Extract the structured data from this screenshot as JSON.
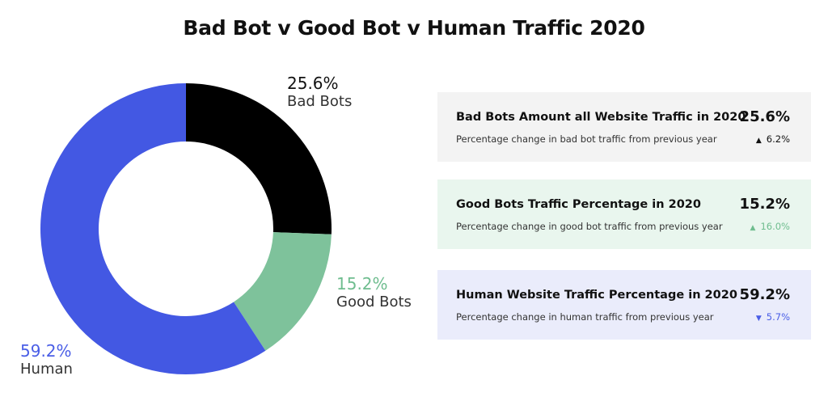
{
  "title": "Bad Bot v Good Bot v Human Traffic 2020",
  "chart_data": {
    "type": "pie",
    "title": "Bad Bot v Good Bot v Human Traffic 2020",
    "donut": true,
    "slices": [
      {
        "name": "Bad Bots",
        "label": "25.6%",
        "value": 25.6,
        "color": "#000000",
        "label_color": "#111111"
      },
      {
        "name": "Good Bots",
        "label": "15.2%",
        "value": 15.2,
        "color": "#7ec29b",
        "label_color": "#6fbd8f"
      },
      {
        "name": "Human",
        "label": "59.2%",
        "value": 59.2,
        "color": "#4358e3",
        "label_color": "#4a5ee6"
      }
    ]
  },
  "cards": [
    {
      "title": "Bad Bots Amount all Website Traffic in 2020",
      "value": "25.6%",
      "subtitle": "Percentage change in bad bot traffic from previous year",
      "arrow": "▲",
      "change": "6.2%",
      "bg": "#f3f3f3",
      "change_color": "#111111"
    },
    {
      "title": "Good Bots Traffic Percentage in 2020",
      "value": "15.2%",
      "subtitle": "Percentage change in good bot traffic from previous year",
      "arrow": "▲",
      "change": "16.0%",
      "bg": "#e9f6ee",
      "change_color": "#6fbd8f"
    },
    {
      "title": "Human Website Traffic Percentage in 2020",
      "value": "59.2%",
      "subtitle": "Percentage change in human traffic from previous year",
      "arrow": "▼",
      "change": "5.7%",
      "bg": "#eaecfb",
      "change_color": "#4a5ee6"
    }
  ]
}
